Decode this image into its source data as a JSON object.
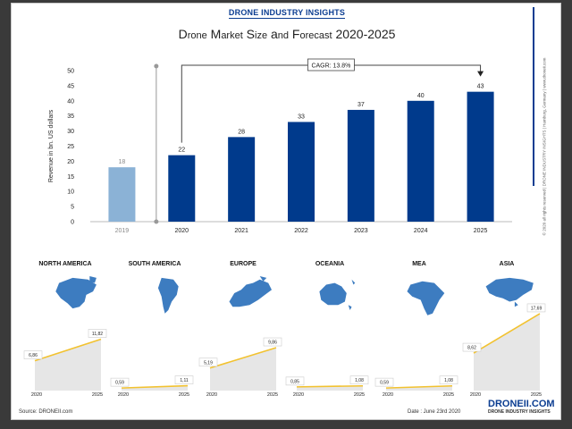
{
  "header": {
    "brand": "DRONE",
    "rest": " INDUSTRY INSIGHTS"
  },
  "side_credit": "© 2020 all rights reserved | DRONE INDUSTRY INSIGHTS | Hamburg, Germany | www.droneii.com",
  "source": "Source: DRONEII.com",
  "date": "Date : June 23rd 2020",
  "footer_logo": {
    "main": "DRONEII.COM",
    "sub": "DRONE INDUSTRY INSIGHTS"
  },
  "colors": {
    "forecast": "#003a8c",
    "base": "#8bb2d6",
    "map": "#3d7cc0",
    "trend": "#f2c230",
    "area": "#e6e6e6"
  },
  "chart_data": [
    {
      "type": "bar",
      "title": "Drone Market Size and Forecast 2020-2025",
      "ylabel": "Revenue in bn. US dollars",
      "xlabel": "",
      "categories": [
        "2019",
        "2020",
        "2021",
        "2022",
        "2023",
        "2024",
        "2025"
      ],
      "values": [
        18,
        22,
        28,
        33,
        37,
        40,
        43
      ],
      "labels": [
        "18",
        "22",
        "28",
        "33",
        "37",
        "40",
        "43"
      ],
      "ylim": [
        0,
        50
      ],
      "yticks": [
        "0",
        "5",
        "10",
        "15",
        "20",
        "25",
        "30",
        "35",
        "40",
        "45",
        "50"
      ],
      "grid": false,
      "annotation": "CAGR: 13.8%"
    },
    {
      "type": "area",
      "region": "NORTH AMERICA",
      "x": [
        "2020",
        "2025"
      ],
      "values": [
        6.86,
        11.82
      ],
      "labels": [
        "6,86",
        "11,82"
      ],
      "ylim": [
        0,
        18.5
      ]
    },
    {
      "type": "area",
      "region": "SOUTH AMERICA",
      "x": [
        "2020",
        "2025"
      ],
      "values": [
        0.59,
        1.11
      ],
      "labels": [
        "0,59",
        "1,11"
      ],
      "ylim": [
        0,
        18.5
      ]
    },
    {
      "type": "area",
      "region": "EUROPE",
      "x": [
        "2020",
        "2025"
      ],
      "values": [
        5.19,
        9.86
      ],
      "labels": [
        "5,19",
        "9,86"
      ],
      "ylim": [
        0,
        18.5
      ]
    },
    {
      "type": "area",
      "region": "OCEANIA",
      "x": [
        "2020",
        "2025"
      ],
      "values": [
        0.85,
        1.08
      ],
      "labels": [
        "0,85",
        "1,08"
      ],
      "ylim": [
        0,
        18.5
      ]
    },
    {
      "type": "area",
      "region": "MEA",
      "x": [
        "2020",
        "2025"
      ],
      "values": [
        0.59,
        1.08
      ],
      "labels": [
        "0,59",
        "1,08"
      ],
      "ylim": [
        0,
        18.5
      ]
    },
    {
      "type": "area",
      "region": "ASIA",
      "x": [
        "2020",
        "2025"
      ],
      "values": [
        8.62,
        17.69
      ],
      "labels": [
        "8,62",
        "17,69"
      ],
      "ylim": [
        0,
        18.5
      ]
    }
  ]
}
